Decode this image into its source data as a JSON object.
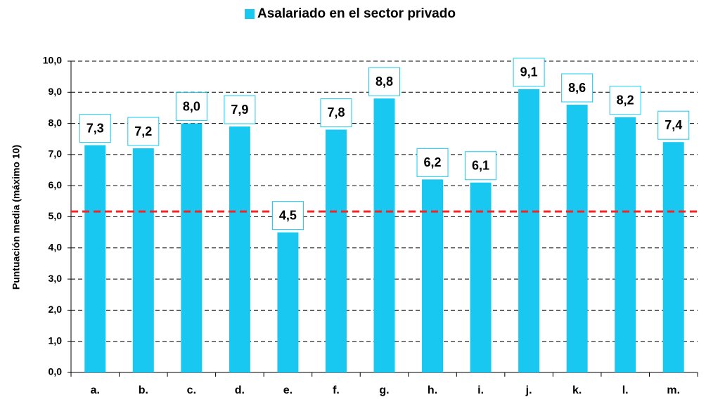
{
  "chart_data": {
    "type": "bar",
    "legend": "Asalariado en el sector privado",
    "y_label": "Puntuación media (máximo 10)",
    "categories": [
      "a.",
      "b.",
      "c.",
      "d.",
      "e.",
      "f.",
      "g.",
      "h.",
      "i.",
      "j.",
      "k.",
      "l.",
      "m."
    ],
    "values": [
      7.3,
      7.2,
      8.0,
      7.9,
      4.5,
      7.8,
      8.8,
      6.2,
      6.1,
      9.1,
      8.6,
      8.2,
      7.4
    ],
    "value_labels": [
      "7,3",
      "7,2",
      "8,0",
      "7,9",
      "4,5",
      "7,8",
      "8,8",
      "6,2",
      "6,1",
      "9,1",
      "8,6",
      "8,2",
      "7,4"
    ],
    "color": "#19c8f0",
    "ylim": [
      0,
      10
    ],
    "yticks": [
      {
        "value": 0,
        "label": "0,0"
      },
      {
        "value": 1,
        "label": "1,0"
      },
      {
        "value": 2,
        "label": "2,0"
      },
      {
        "value": 3,
        "label": "3,0"
      },
      {
        "value": 4,
        "label": "4,0"
      },
      {
        "value": 5,
        "label": "5,0"
      },
      {
        "value": 6,
        "label": "6,0"
      },
      {
        "value": 7,
        "label": "7,0"
      },
      {
        "value": 8,
        "label": "8,0"
      },
      {
        "value": 9,
        "label": "9,0"
      },
      {
        "value": 10,
        "label": "10,0"
      }
    ],
    "grid": true,
    "reference_line": {
      "value": 5.17,
      "color": "#ff2020"
    }
  }
}
